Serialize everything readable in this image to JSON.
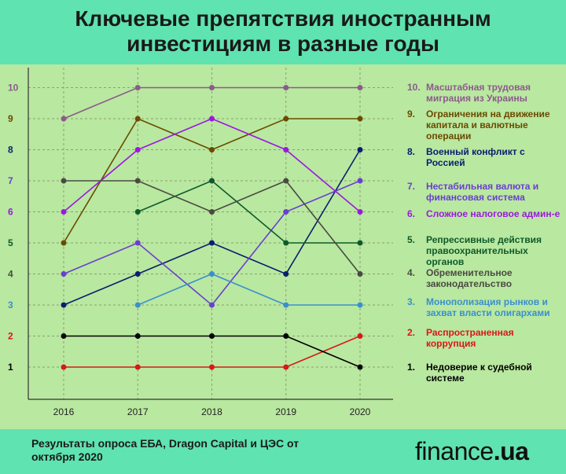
{
  "title": "Ключевые препятствия иностранным инвестициям в разные годы",
  "source": "Результаты опроса ЕБА, Dragon Capital и ЦЭС от октября 2020",
  "logo": {
    "domain": "finance",
    "suffix": ".ua"
  },
  "colors": {
    "background": "#b9e8a0",
    "header": "#5fe3b0",
    "grid": "#8aa070",
    "axis": "#333333"
  },
  "chart_data": {
    "type": "line",
    "categories": [
      "2016",
      "2017",
      "2018",
      "2019",
      "2020"
    ],
    "y_ticks": [
      "1",
      "2",
      "3",
      "4",
      "5",
      "6",
      "7",
      "8",
      "9",
      "10"
    ],
    "ylim": [
      0.5,
      10.5
    ],
    "grid": true,
    "legend_position": "right",
    "series": [
      {
        "rank": "10.",
        "name": "Масштабная трудовая миграция из Украины",
        "color": "#8c5a8c",
        "values": [
          9,
          10,
          10,
          10,
          10
        ]
      },
      {
        "rank": "9.",
        "name": "Ограничения на движение капитала и валютные операции",
        "color": "#6b4a00",
        "values": [
          5,
          9,
          8,
          9,
          9
        ]
      },
      {
        "rank": "8.",
        "name": "Военный конфликт с Россией",
        "color": "#0a1e6e",
        "values": [
          3,
          4,
          5,
          4,
          8
        ]
      },
      {
        "rank": "7.",
        "name": "Нестабильная валюта и финансовая система",
        "color": "#6a3fd0",
        "values": [
          4,
          5,
          3,
          6,
          7
        ]
      },
      {
        "rank": "6.",
        "name": "Сложное налоговое админ-е",
        "color": "#9b18e0",
        "values": [
          6,
          8,
          9,
          8,
          6
        ]
      },
      {
        "rank": "5.",
        "name": "Репрессивные действия правоохранительных органов",
        "color": "#0e5a2a",
        "values": [
          null,
          6,
          7,
          5,
          5
        ]
      },
      {
        "rank": "4.",
        "name": "Обременительное законодательство",
        "color": "#4a4a42",
        "values": [
          7,
          7,
          6,
          7,
          4
        ]
      },
      {
        "rank": "3.",
        "name": "Монополизация рынков и захват власти олигархами",
        "color": "#3a8fd0",
        "values": [
          null,
          3,
          4,
          3,
          3
        ]
      },
      {
        "rank": "2.",
        "name": "Распространенная коррупция",
        "color": "#d81818",
        "values": [
          1,
          1,
          1,
          1,
          2
        ]
      },
      {
        "rank": "1.",
        "name": "Недоверие к судебной системе",
        "color": "#000000",
        "values": [
          2,
          2,
          2,
          2,
          1
        ]
      }
    ]
  }
}
